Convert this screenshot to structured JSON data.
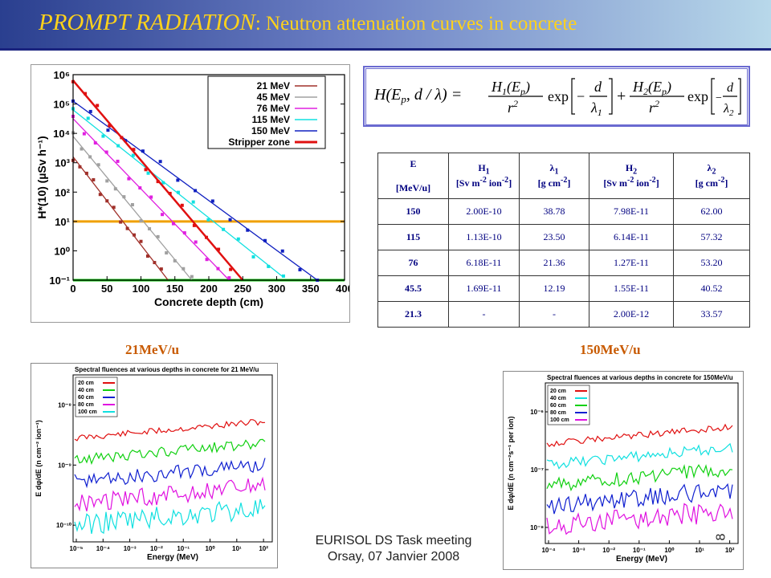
{
  "header": {
    "title_italic": "PROMPT RADIATION",
    "title_rest": ": Neutron  attenuation curves in concrete"
  },
  "attenuation_plot": {
    "y_label": "H*(10)  (µSv h⁻¹)",
    "x_label": "Concrete depth (cm)",
    "legend": [
      {
        "label": "21 MeV",
        "color": "#a0302a"
      },
      {
        "label": "45 MeV",
        "color": "#a0a0a0"
      },
      {
        "label": "76 MeV",
        "color": "#e020e0"
      },
      {
        "label": "115 MeV",
        "color": "#10e0e0"
      },
      {
        "label": "150 MeV",
        "color": "#1020c0"
      },
      {
        "label": "Stripper zone",
        "color": "#e01010"
      }
    ],
    "y_ticks": [
      "10⁶",
      "10⁵",
      "10⁴",
      "10³",
      "10²",
      "10¹",
      "10⁰",
      "10⁻¹"
    ],
    "x_ticks": [
      "0",
      "50",
      "100",
      "150",
      "200",
      "250",
      "300",
      "350",
      "400"
    ]
  },
  "chart_data": {
    "type": "scatter",
    "xlabel": "Concrete depth (cm)",
    "ylabel": "H*(10)  (µSv h⁻¹)",
    "xlim": [
      0,
      400
    ],
    "ylim": [
      -1,
      6
    ],
    "y_scale": "log10",
    "series": [
      {
        "name": "21 MeV",
        "color": "#a0302a",
        "x": [
          0,
          140
        ],
        "y": [
          3.2,
          -1
        ]
      },
      {
        "name": "45 MeV",
        "color": "#a0a0a0",
        "x": [
          0,
          175
        ],
        "y": [
          3.9,
          -1
        ]
      },
      {
        "name": "76 MeV",
        "color": "#e020e0",
        "x": [
          0,
          230
        ],
        "y": [
          4.5,
          -1
        ]
      },
      {
        "name": "115 MeV",
        "color": "#10e0e0",
        "x": [
          0,
          310
        ],
        "y": [
          4.8,
          -0.9
        ]
      },
      {
        "name": "150 MeV",
        "color": "#1020c0",
        "x": [
          0,
          360
        ],
        "y": [
          5.1,
          -1
        ]
      },
      {
        "name": "Stripper zone",
        "color": "#e01010",
        "x": [
          0,
          250
        ],
        "y": [
          5.8,
          -1
        ]
      }
    ],
    "reference_lines": [
      {
        "color": "#f0a000",
        "y": 1
      },
      {
        "color": "#00c000",
        "y": -1
      }
    ]
  },
  "formula": {
    "lhs": "H(E",
    "lhs_sub": "p",
    "lhs_rest": ", d / λ) =",
    "num1": "H",
    "num1_sub": "1",
    "num1_rest": "(E",
    "num1_sub2": "p",
    "num1_end": ")",
    "den": "r",
    "den_sup": "2",
    "exp": "exp",
    "frac_num": "d",
    "lambda1": "λ",
    "lambda1_sub": "1",
    "plus": "+",
    "num2": "H",
    "num2_sub": "2",
    "lambda2": "λ",
    "lambda2_sub": "2",
    "minus": "−"
  },
  "table": {
    "headers": [
      {
        "top": "E",
        "bottom": "[MeV/u]"
      },
      {
        "top": "H",
        "top_sub": "1",
        "bottom": "[Sv m",
        "bottom_sup": "-2",
        "bottom_end": " ion",
        "bottom_sup2": "-2",
        "bottom_close": "]"
      },
      {
        "top": "λ",
        "top_sub": "1",
        "bottom": "[g cm",
        "bottom_sup": "-2",
        "bottom_close": "]"
      },
      {
        "top": "H",
        "top_sub": "2",
        "bottom": "[Sv m",
        "bottom_sup": "-2",
        "bottom_end": " ion",
        "bottom_sup2": "-2",
        "bottom_close": "]"
      },
      {
        "top": "λ",
        "top_sub": "2",
        "bottom": "[g cm",
        "bottom_sup": "-2",
        "bottom_close": "]"
      }
    ],
    "rows": [
      [
        "150",
        "2.00E-10",
        "38.78",
        "7.98E-11",
        "62.00"
      ],
      [
        "115",
        "1.13E-10",
        "23.50",
        "6.14E-11",
        "57.32"
      ],
      [
        "76",
        "6.18E-11",
        "21.36",
        "1.27E-11",
        "53.20"
      ],
      [
        "45.5",
        "1.69E-11",
        "12.19",
        "1.55E-11",
        "40.52"
      ],
      [
        "21.3",
        "-",
        "-",
        "2.00E-12",
        "33.57"
      ]
    ]
  },
  "spectrum_left": {
    "energy_label": "21MeV/u",
    "title": "Spectral fluences at various depths in concrete for 21 MeV/u",
    "y_label": "E dφ/dE (n cm⁻² ion⁻¹)",
    "x_label": "Energy (MeV)",
    "legend": [
      {
        "label": "20 cm",
        "color": "#e01010"
      },
      {
        "label": "40 cm",
        "color": "#10d010"
      },
      {
        "label": "60 cm",
        "color": "#1020d0"
      },
      {
        "label": "80 cm",
        "color": "#e010e0"
      },
      {
        "label": "100 cm",
        "color": "#10e0e0"
      }
    ],
    "y_ticks": [
      "10⁻⁸",
      "10⁻⁹",
      "10⁻¹⁰"
    ],
    "x_ticks": [
      "10⁻⁵",
      "10⁻⁴",
      "10⁻³",
      "10⁻²",
      "10⁻¹",
      "10⁰",
      "10¹",
      "10²"
    ]
  },
  "spectrum_right": {
    "energy_label": "150MeV/u",
    "title": "Spectral fluences at various depths in concrete for 150MeV/u",
    "y_label": "E dφ/dE (n cm⁻²s⁻¹ per ion)",
    "x_label": "Energy (MeV)",
    "legend": [
      {
        "label": "20 cm",
        "color": "#e01010"
      },
      {
        "label": "40 cm",
        "color": "#10e0e0"
      },
      {
        "label": "60 cm",
        "color": "#10d010"
      },
      {
        "label": "80 cm",
        "color": "#1020d0"
      },
      {
        "label": "100 cm",
        "color": "#e010e0"
      }
    ],
    "y_ticks": [
      "10⁻⁶",
      "10⁻⁷",
      "10⁻⁸"
    ],
    "x_ticks": [
      "10⁻⁴",
      "10⁻³",
      "10⁻²",
      "10⁻¹",
      "10⁰",
      "10¹",
      "10²"
    ]
  },
  "footer": {
    "line1": "EURISOL DS  Task meeting",
    "line2": "Orsay, 07 Janvier 2008"
  },
  "page_number": "8"
}
